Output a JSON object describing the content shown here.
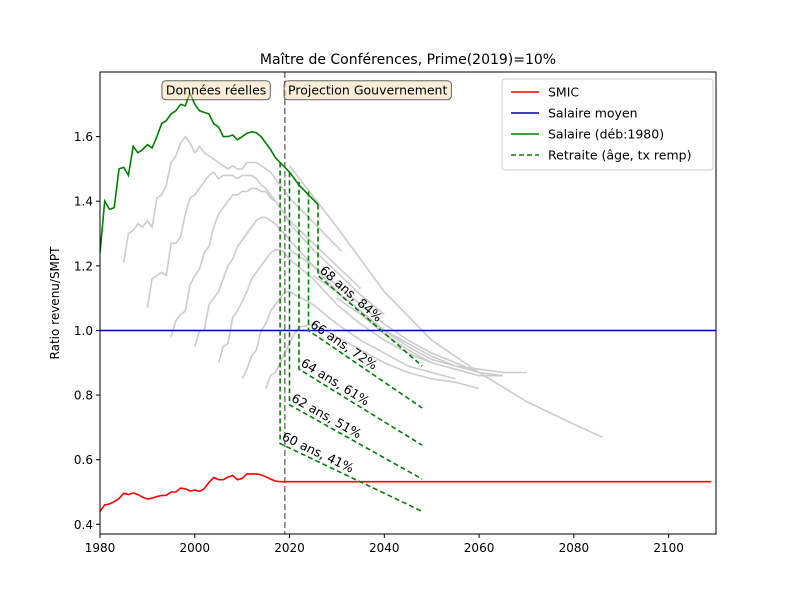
{
  "chart_data": {
    "type": "line",
    "title": "Maître de Conférences, Prime(2019)=10%",
    "xlabel": "",
    "ylabel": "Ratio revenu/SMPT",
    "xlim": [
      1980,
      2110
    ],
    "ylim": [
      0.37,
      1.8
    ],
    "x_ticks": [
      1980,
      2000,
      2020,
      2040,
      2060,
      2080,
      2100
    ],
    "y_ticks": [
      0.4,
      0.6,
      0.8,
      1.0,
      1.2,
      1.4,
      1.6
    ],
    "grid": false,
    "legend_position": "top-right",
    "annotations": [
      {
        "text": "Données réelles",
        "x": 2004.5,
        "y": 1.745
      },
      {
        "text": "Projection Gouvernement",
        "x": 2036.5,
        "y": 1.745
      }
    ],
    "vline": {
      "x": 2019,
      "style": "dashed",
      "color": "#808080"
    },
    "series": [
      {
        "name": "SMIC",
        "color": "#ff0000",
        "style": "solid",
        "x": [
          1980,
          1981,
          1982,
          1983,
          1984,
          1985,
          1986,
          1987,
          1988,
          1989,
          1990,
          1991,
          1992,
          1993,
          1994,
          1995,
          1996,
          1997,
          1998,
          1999,
          2000,
          2001,
          2002,
          2003,
          2004,
          2005,
          2006,
          2007,
          2008,
          2009,
          2010,
          2011,
          2012,
          2013,
          2014,
          2015,
          2016,
          2017,
          2018,
          2019,
          2020,
          2030,
          2040,
          2060,
          2080,
          2100,
          2109
        ],
        "values": [
          0.44,
          0.46,
          0.463,
          0.47,
          0.48,
          0.496,
          0.492,
          0.497,
          0.492,
          0.484,
          0.478,
          0.481,
          0.486,
          0.489,
          0.49,
          0.5,
          0.5,
          0.512,
          0.51,
          0.503,
          0.506,
          0.502,
          0.51,
          0.53,
          0.545,
          0.538,
          0.538,
          0.546,
          0.551,
          0.538,
          0.542,
          0.556,
          0.556,
          0.556,
          0.553,
          0.547,
          0.54,
          0.534,
          0.532,
          0.532,
          0.532,
          0.532,
          0.532,
          0.532,
          0.532,
          0.532,
          0.532
        ]
      },
      {
        "name": "Salaire moyen",
        "color": "#0000b4",
        "style": "solid",
        "x": [
          1980,
          2110
        ],
        "values": [
          1.0,
          1.0
        ]
      },
      {
        "name": "Salaire (déb:1980)",
        "color": "#008000",
        "style": "solid",
        "x": [
          1980,
          1981,
          1982,
          1983,
          1984,
          1985,
          1986,
          1987,
          1988,
          1989,
          1990,
          1991,
          1992,
          1993,
          1994,
          1995,
          1996,
          1997,
          1998,
          1999,
          2000,
          2001,
          2002,
          2003,
          2004,
          2005,
          2006,
          2007,
          2008,
          2009,
          2010,
          2011,
          2012,
          2013,
          2014,
          2015,
          2016,
          2017,
          2018,
          2019,
          2020,
          2021,
          2022,
          2023,
          2024,
          2025,
          2026
        ],
        "values": [
          1.24,
          1.4,
          1.375,
          1.38,
          1.5,
          1.505,
          1.48,
          1.57,
          1.55,
          1.56,
          1.575,
          1.565,
          1.6,
          1.64,
          1.65,
          1.67,
          1.68,
          1.7,
          1.695,
          1.735,
          1.7,
          1.68,
          1.675,
          1.67,
          1.64,
          1.63,
          1.6,
          1.6,
          1.605,
          1.59,
          1.6,
          1.61,
          1.615,
          1.612,
          1.6,
          1.58,
          1.56,
          1.535,
          1.52,
          1.505,
          1.49,
          1.47,
          1.45,
          1.435,
          1.42,
          1.405,
          1.39
        ]
      },
      {
        "name": "Retraite (âge, tx remp)",
        "color": "#008000",
        "style": "dashed",
        "x": [],
        "values": []
      }
    ],
    "background_series": [
      {
        "x": [
          1985,
          1986,
          1987,
          1988,
          1989,
          1990,
          1991,
          1992,
          1993,
          1994,
          1995,
          1996,
          1997,
          1998,
          1999,
          2000,
          2001,
          2002,
          2003,
          2004,
          2005,
          2006,
          2007,
          2008,
          2009,
          2010,
          2011,
          2012,
          2013,
          2014,
          2015,
          2016,
          2017,
          2018,
          2019,
          2020,
          2022,
          2024,
          2026,
          2028,
          2030,
          2031
        ],
        "values": [
          1.21,
          1.3,
          1.31,
          1.33,
          1.32,
          1.34,
          1.32,
          1.41,
          1.42,
          1.45,
          1.52,
          1.54,
          1.58,
          1.6,
          1.58,
          1.55,
          1.57,
          1.55,
          1.54,
          1.53,
          1.52,
          1.51,
          1.5,
          1.51,
          1.5,
          1.5,
          1.52,
          1.52,
          1.52,
          1.51,
          1.5,
          1.49,
          1.47,
          1.45,
          1.43,
          1.41,
          1.38,
          1.35,
          1.32,
          1.29,
          1.26,
          1.245
        ]
      },
      {
        "x": [
          1990,
          1991,
          1992,
          1993,
          1994,
          1995,
          1996,
          1997,
          1998,
          1999,
          2000,
          2001,
          2002,
          2003,
          2004,
          2005,
          2006,
          2007,
          2008,
          2009,
          2010,
          2011,
          2012,
          2013,
          2014,
          2015,
          2016,
          2017,
          2018,
          2019,
          2020,
          2025,
          2030,
          2035
        ],
        "values": [
          1.07,
          1.16,
          1.17,
          1.18,
          1.17,
          1.27,
          1.27,
          1.29,
          1.36,
          1.41,
          1.42,
          1.44,
          1.46,
          1.48,
          1.49,
          1.47,
          1.48,
          1.48,
          1.48,
          1.47,
          1.48,
          1.48,
          1.48,
          1.47,
          1.45,
          1.44,
          1.42,
          1.4,
          1.38,
          1.36,
          1.34,
          1.27,
          1.2,
          1.13
        ]
      },
      {
        "x": [
          1995,
          1996,
          1997,
          1998,
          1999,
          2000,
          2001,
          2002,
          2003,
          2004,
          2005,
          2006,
          2007,
          2008,
          2009,
          2010,
          2011,
          2012,
          2013,
          2014,
          2015,
          2016,
          2017,
          2018,
          2019,
          2020,
          2025,
          2030,
          2035,
          2040
        ],
        "values": [
          0.98,
          1.03,
          1.05,
          1.06,
          1.14,
          1.17,
          1.19,
          1.24,
          1.26,
          1.32,
          1.36,
          1.38,
          1.4,
          1.42,
          1.42,
          1.43,
          1.43,
          1.44,
          1.44,
          1.43,
          1.43,
          1.41,
          1.4,
          1.38,
          1.36,
          1.33,
          1.25,
          1.18,
          1.11,
          1.05
        ]
      },
      {
        "x": [
          2000,
          2001,
          2002,
          2003,
          2004,
          2005,
          2006,
          2007,
          2008,
          2009,
          2010,
          2011,
          2012,
          2013,
          2014,
          2015,
          2016,
          2017,
          2018,
          2019,
          2020,
          2025,
          2030,
          2035,
          2040,
          2045
        ],
        "values": [
          0.95,
          1.0,
          1.0,
          1.08,
          1.1,
          1.12,
          1.16,
          1.2,
          1.22,
          1.26,
          1.28,
          1.3,
          1.32,
          1.34,
          1.35,
          1.35,
          1.34,
          1.33,
          1.31,
          1.3,
          1.28,
          1.2,
          1.12,
          1.06,
          1.0,
          0.96
        ]
      },
      {
        "x": [
          2005,
          2006,
          2007,
          2008,
          2009,
          2010,
          2011,
          2012,
          2013,
          2014,
          2015,
          2016,
          2017,
          2018,
          2019,
          2020,
          2025,
          2030,
          2035,
          2040,
          2045,
          2050
        ],
        "values": [
          0.9,
          0.95,
          0.96,
          1.04,
          1.06,
          1.09,
          1.12,
          1.16,
          1.18,
          1.2,
          1.22,
          1.24,
          1.25,
          1.25,
          1.24,
          1.22,
          1.16,
          1.08,
          1.02,
          0.97,
          0.93,
          0.9
        ]
      },
      {
        "x": [
          2010,
          2011,
          2012,
          2013,
          2014,
          2015,
          2016,
          2017,
          2018,
          2019,
          2020,
          2025,
          2030,
          2035,
          2040,
          2045,
          2050,
          2055
        ],
        "values": [
          0.85,
          0.88,
          0.92,
          0.94,
          1.0,
          1.02,
          1.06,
          1.08,
          1.1,
          1.12,
          1.12,
          1.08,
          1.02,
          0.97,
          0.93,
          0.89,
          0.87,
          0.85
        ]
      },
      {
        "x": [
          2015,
          2016,
          2017,
          2018,
          2019,
          2020,
          2021,
          2022,
          2025,
          2030,
          2035,
          2040,
          2045,
          2050,
          2055,
          2060
        ],
        "values": [
          0.82,
          0.86,
          0.87,
          0.9,
          0.93,
          0.96,
          0.99,
          1.01,
          1.02,
          0.98,
          0.94,
          0.9,
          0.87,
          0.85,
          0.84,
          0.82
        ]
      },
      {
        "x": [
          2020,
          2025,
          2030,
          2035,
          2040,
          2045,
          2050,
          2055,
          2060
        ],
        "values": [
          1.25,
          1.2,
          1.14,
          1.08,
          1.02,
          0.97,
          0.93,
          0.9,
          0.87
        ]
      },
      {
        "x": [
          2025,
          2030,
          2035,
          2040,
          2045,
          2050,
          2055,
          2060,
          2065
        ],
        "values": [
          1.17,
          1.12,
          1.06,
          1.0,
          0.96,
          0.92,
          0.89,
          0.87,
          0.86
        ]
      },
      {
        "x": [
          2030,
          2035,
          2040,
          2045,
          2050,
          2055,
          2060,
          2065
        ],
        "values": [
          1.1,
          1.05,
          0.99,
          0.94,
          0.9,
          0.88,
          0.86,
          0.86
        ]
      },
      {
        "x": [
          2035,
          2040,
          2045,
          2050,
          2055,
          2060,
          2065,
          2070
        ],
        "values": [
          1.05,
          1.0,
          0.95,
          0.91,
          0.89,
          0.88,
          0.87,
          0.87
        ]
      },
      {
        "x": [
          2020,
          2030,
          2040,
          2050,
          2060,
          2070,
          2080,
          2086
        ],
        "values": [
          1.51,
          1.32,
          1.12,
          0.97,
          0.87,
          0.78,
          0.71,
          0.67
        ]
      }
    ],
    "retirement_series": [
      {
        "label": "60 ans, 41%",
        "x": [
          2018,
          2018,
          2048
        ],
        "values": [
          1.52,
          0.65,
          0.44
        ]
      },
      {
        "label": "62 ans, 51%",
        "x": [
          2020,
          2020,
          2048
        ],
        "values": [
          1.49,
          0.77,
          0.54
        ]
      },
      {
        "label": "64 ans, 61%",
        "x": [
          2022,
          2022,
          2048
        ],
        "values": [
          1.46,
          0.88,
          0.645
        ]
      },
      {
        "label": "66 ans, 72%",
        "x": [
          2024,
          2024,
          2048
        ],
        "values": [
          1.43,
          1.0,
          0.76
        ]
      },
      {
        "label": "68 ans, 84%",
        "x": [
          2026,
          2026,
          2048
        ],
        "values": [
          1.39,
          1.17,
          0.89
        ]
      }
    ]
  }
}
